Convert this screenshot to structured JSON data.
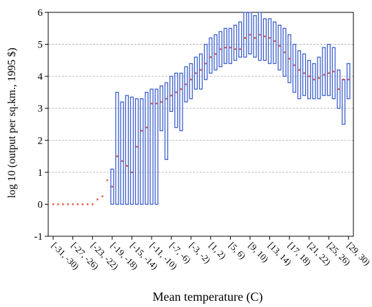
{
  "chart_data": {
    "type": "boxplot",
    "title": "",
    "xlabel": "Mean temperature (C)",
    "ylabel": "log 10 (output per sq.km., 1995 $)",
    "ylim": [
      -1,
      6
    ],
    "yticks": [
      "-1",
      "0",
      "1",
      "2",
      "3",
      "4",
      "5",
      "6"
    ],
    "grid": "horizontal dashed at y = 1..5",
    "colors": {
      "box": "#3b5fcc",
      "median": "#e0402a",
      "grid": "#a8a8a8"
    },
    "x_tick_labels": [
      "[-31, -30)",
      "[-27, -26)",
      "[-23, -22)",
      "[-19, -18)",
      "[-15, -14)",
      "[-11, -10)",
      "[-7, -6)",
      "[-3, -2)",
      "[1, 2)",
      "[5, 6)",
      "[9, 10)",
      "[13, 14)",
      "[17, 18)",
      "[21, 22)",
      "[25, 26)",
      "[29, 30)"
    ],
    "x_tick_values": [
      -31,
      -27,
      -23,
      -19,
      -15,
      -11,
      -7,
      -3,
      1,
      5,
      9,
      13,
      17,
      21,
      25,
      29
    ],
    "bins": [
      {
        "x": -31,
        "median": 0.0
      },
      {
        "x": -30,
        "median": 0.0
      },
      {
        "x": -29,
        "median": 0.0
      },
      {
        "x": -28,
        "median": 0.0
      },
      {
        "x": -27,
        "median": 0.0
      },
      {
        "x": -26,
        "median": 0.0
      },
      {
        "x": -25,
        "median": 0.0
      },
      {
        "x": -24,
        "median": 0.0
      },
      {
        "x": -23,
        "median": 0.0
      },
      {
        "x": -22,
        "median": 0.15
      },
      {
        "x": -21,
        "median": 0.25
      },
      {
        "x": -20,
        "median": 0.75
      },
      {
        "x": -19,
        "low": 0.0,
        "high": 1.1,
        "median": 0.55
      },
      {
        "x": -18,
        "low": 0.0,
        "high": 3.5,
        "median": 1.5
      },
      {
        "x": -17,
        "low": 0.0,
        "high": 3.2,
        "median": 1.35
      },
      {
        "x": -16,
        "low": 0.0,
        "high": 3.4,
        "median": 1.2
      },
      {
        "x": -15,
        "low": 0.0,
        "high": 3.35,
        "median": 1.0
      },
      {
        "x": -14,
        "low": 0.0,
        "high": 3.3,
        "median": 1.8
      },
      {
        "x": -13,
        "low": 0.0,
        "high": 3.3,
        "median": 2.3
      },
      {
        "x": -12,
        "low": 0.0,
        "high": 3.5,
        "median": 2.4
      },
      {
        "x": -11,
        "low": 0.0,
        "high": 3.6,
        "median": 3.15
      },
      {
        "x": -10,
        "low": 0.0,
        "high": 3.6,
        "median": 3.15
      },
      {
        "x": -9,
        "low": 2.3,
        "high": 3.7,
        "median": 3.2
      },
      {
        "x": -8,
        "low": 1.4,
        "high": 3.8,
        "median": 3.3
      },
      {
        "x": -7,
        "low": 2.9,
        "high": 4.0,
        "median": 3.4
      },
      {
        "x": -6,
        "low": 2.4,
        "high": 4.1,
        "median": 3.5
      },
      {
        "x": -5,
        "low": 2.3,
        "high": 4.1,
        "median": 3.6
      },
      {
        "x": -4,
        "low": 3.2,
        "high": 4.3,
        "median": 3.75
      },
      {
        "x": -3,
        "low": 3.3,
        "high": 4.4,
        "median": 3.9
      },
      {
        "x": -2,
        "low": 3.6,
        "high": 4.6,
        "median": 4.1
      },
      {
        "x": -1,
        "low": 3.6,
        "high": 4.7,
        "median": 4.2
      },
      {
        "x": 0,
        "low": 3.9,
        "high": 5.0,
        "median": 4.4
      },
      {
        "x": 1,
        "low": 4.1,
        "high": 5.2,
        "median": 4.6
      },
      {
        "x": 2,
        "low": 4.2,
        "high": 5.3,
        "median": 4.7
      },
      {
        "x": 3,
        "low": 4.3,
        "high": 5.4,
        "median": 4.85
      },
      {
        "x": 4,
        "low": 4.4,
        "high": 5.5,
        "median": 4.9
      },
      {
        "x": 5,
        "low": 4.4,
        "high": 5.5,
        "median": 4.9
      },
      {
        "x": 6,
        "low": 4.5,
        "high": 5.6,
        "median": 4.85
      },
      {
        "x": 7,
        "low": 4.6,
        "high": 5.7,
        "median": 4.85
      },
      {
        "x": 8,
        "low": 4.6,
        "high": 6.0,
        "median": 5.2
      },
      {
        "x": 9,
        "low": 4.7,
        "high": 6.0,
        "median": 5.3
      },
      {
        "x": 10,
        "low": 4.6,
        "high": 5.9,
        "median": 5.2
      },
      {
        "x": 11,
        "low": 4.5,
        "high": 6.0,
        "median": 5.3
      },
      {
        "x": 12,
        "low": 4.5,
        "high": 5.8,
        "median": 5.25
      },
      {
        "x": 13,
        "low": 4.4,
        "high": 5.8,
        "median": 5.2
      },
      {
        "x": 14,
        "low": 4.4,
        "high": 5.7,
        "median": 5.1
      },
      {
        "x": 15,
        "low": 4.2,
        "high": 5.6,
        "median": 4.95
      },
      {
        "x": 16,
        "low": 4.0,
        "high": 5.5,
        "median": 4.75
      },
      {
        "x": 17,
        "low": 3.8,
        "high": 5.3,
        "median": 4.55
      },
      {
        "x": 18,
        "low": 3.5,
        "high": 5.0,
        "median": 4.35
      },
      {
        "x": 19,
        "low": 3.3,
        "high": 4.8,
        "median": 4.2
      },
      {
        "x": 20,
        "low": 3.4,
        "high": 4.7,
        "median": 4.1
      },
      {
        "x": 21,
        "low": 3.3,
        "high": 4.5,
        "median": 4.0
      },
      {
        "x": 22,
        "low": 3.3,
        "high": 4.4,
        "median": 3.9
      },
      {
        "x": 23,
        "low": 3.3,
        "high": 4.6,
        "median": 3.95
      },
      {
        "x": 24,
        "low": 3.4,
        "high": 4.9,
        "median": 4.05
      },
      {
        "x": 25,
        "low": 3.4,
        "high": 5.0,
        "median": 4.1
      },
      {
        "x": 26,
        "low": 3.3,
        "high": 4.9,
        "median": 4.15
      },
      {
        "x": 27,
        "low": 3.0,
        "high": 4.2,
        "median": 3.6
      },
      {
        "x": 28,
        "low": 2.5,
        "high": 3.9,
        "median": 3.9
      },
      {
        "x": 29,
        "low": 3.3,
        "high": 4.4,
        "median": 3.9
      }
    ]
  }
}
